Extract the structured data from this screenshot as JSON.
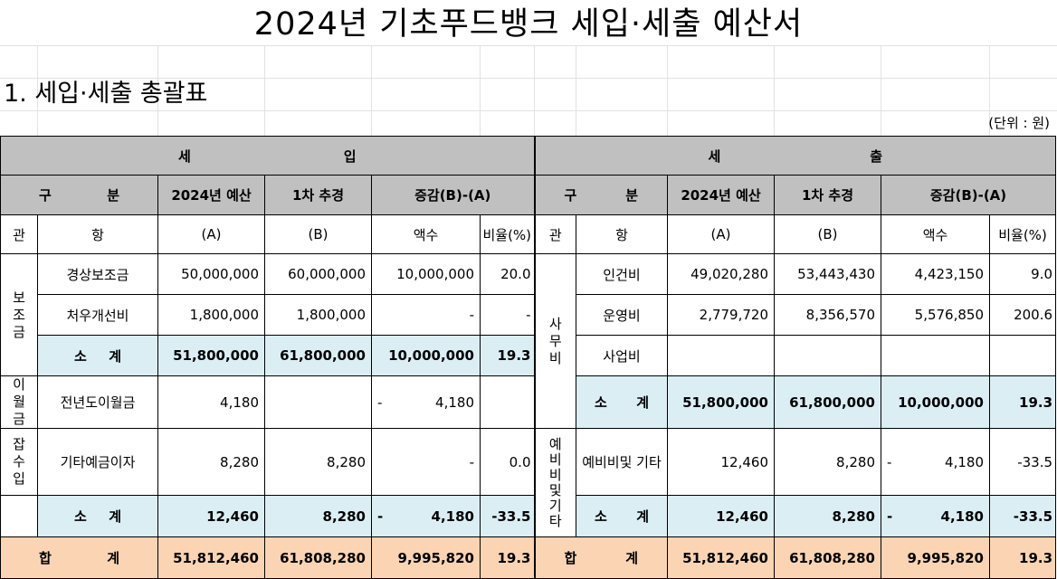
{
  "title": "2024년 기초푸드뱅크 세입·세출 예산서",
  "section_title": "1. 세입·세출 총괄표",
  "unit": "(단위 : 원)",
  "revenue": {
    "header": [
      "세",
      "입"
    ],
    "gubun": [
      "구",
      "분"
    ],
    "budget": "2024년 예산",
    "revised": "1차 추경",
    "diff": "증감(B)-(A)",
    "col_gwan": "관",
    "col_hang": "항",
    "col_a": "(A)",
    "col_b": "(B)",
    "col_amount": "액수",
    "col_rate": "비율(%)",
    "groups": [
      {
        "gwan": [
          "보",
          "조",
          "금"
        ],
        "rows": [
          {
            "hang": "경상보조금",
            "a": "50,000,000",
            "b": "60,000,000",
            "amount": "10,000,000",
            "rate": "20.0"
          },
          {
            "hang": "처우개선비",
            "a": "1,800,000",
            "b": "1,800,000",
            "amount": "-",
            "rate": "-"
          }
        ],
        "subtotal": {
          "label": [
            "소",
            "계"
          ],
          "a": "51,800,000",
          "b": "61,800,000",
          "amount": "10,000,000",
          "rate": "19.3"
        }
      },
      {
        "gwan": [
          "이",
          "월",
          "금"
        ],
        "rows": [
          {
            "hang": "전년도이월금",
            "a": "4,180",
            "b": "",
            "sign": "-",
            "amount": "4,180",
            "rate": ""
          }
        ]
      },
      {
        "gwan": [
          "잡",
          "수",
          "입"
        ],
        "rows": [
          {
            "hang": "기타예금이자",
            "a": "8,280",
            "b": "8,280",
            "amount": "-",
            "rate": "0.0"
          }
        ],
        "subtotal": {
          "label": [
            "소",
            "계"
          ],
          "a": "12,460",
          "b": "8,280",
          "sign": "-",
          "amount": "4,180",
          "rate": "-33.5"
        }
      }
    ],
    "total": {
      "label": [
        "합",
        "계"
      ],
      "a": "51,812,460",
      "b": "61,808,280",
      "amount": "9,995,820",
      "rate": "19.3"
    }
  },
  "expense": {
    "header": [
      "세",
      "출"
    ],
    "gubun": [
      "구",
      "분"
    ],
    "budget": "2024년 예산",
    "revised": "1차 추경",
    "diff": "증감(B)-(A)",
    "col_gwan": "관",
    "col_hang": "항",
    "col_a": "(A)",
    "col_b": "(B)",
    "col_amount": "액수",
    "col_rate": "비율(%)",
    "groups": [
      {
        "gwan": [
          "사",
          "무",
          "비"
        ],
        "rows": [
          {
            "hang": "인건비",
            "a": "49,020,280",
            "b": "53,443,430",
            "amount": "4,423,150",
            "rate": "9.0"
          },
          {
            "hang": "운영비",
            "a": "2,779,720",
            "b": "8,356,570",
            "amount": "5,576,850",
            "rate": "200.6"
          },
          {
            "hang": "사업비",
            "a": "",
            "b": "",
            "amount": "",
            "rate": ""
          }
        ],
        "subtotal": {
          "label": [
            "소",
            "계"
          ],
          "a": "51,800,000",
          "b": "61,800,000",
          "amount": "10,000,000",
          "rate": "19.3"
        }
      },
      {
        "gwan": [
          "예",
          "비",
          "비",
          "및",
          "기",
          "타"
        ],
        "rows": [
          {
            "hang": "예비비및 기타",
            "a": "12,460",
            "b": "8,280",
            "sign": "-",
            "amount": "4,180",
            "rate": "-33.5"
          }
        ],
        "subtotal": {
          "label": [
            "소",
            "계"
          ],
          "a": "12,460",
          "b": "8,280",
          "sign": "-",
          "amount": "4,180",
          "rate": "-33.5"
        }
      }
    ],
    "total": {
      "label": [
        "합",
        "계"
      ],
      "a": "51,812,460",
      "b": "61,808,280",
      "amount": "9,995,820",
      "rate": "19.3"
    }
  }
}
